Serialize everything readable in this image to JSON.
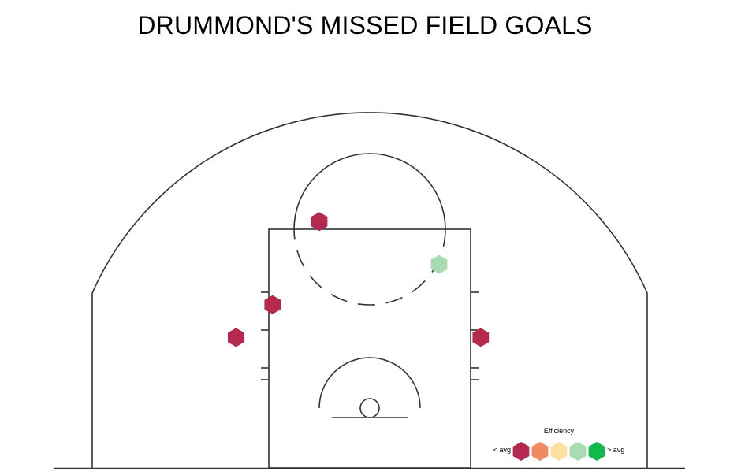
{
  "chart_data": {
    "type": "scatter",
    "title": "DRUMMOND'S MISSED FIELD GOALS",
    "x_unit": "feet",
    "y_unit": "feet",
    "xlim": [
      -25,
      25
    ],
    "ylim": [
      -5,
      37.4
    ],
    "points": [
      {
        "x": -4.0,
        "y": 14.8,
        "efficiency": "< avg",
        "color": "#b5294e"
      },
      {
        "x": 5.5,
        "y": 11.4,
        "efficiency": "above avg",
        "color": "#a8dcb0"
      },
      {
        "x": -7.7,
        "y": 8.2,
        "efficiency": "< avg",
        "color": "#b5294e"
      },
      {
        "x": -10.6,
        "y": 5.6,
        "efficiency": "< avg",
        "color": "#b5294e"
      },
      {
        "x": 8.8,
        "y": 5.6,
        "efficiency": "< avg",
        "color": "#b5294e"
      }
    ],
    "legend": {
      "title": "Efficiency",
      "low_label": "< avg",
      "high_label": "> avg",
      "colors": [
        "#b5294e",
        "#ef8a62",
        "#fde0a0",
        "#a8dcb0",
        "#11b94a"
      ],
      "placement": "bottom-right"
    }
  }
}
